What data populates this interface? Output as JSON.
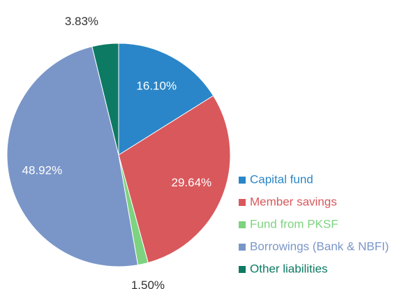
{
  "chart_data": {
    "type": "pie",
    "categories": [
      "Capital fund",
      "Member savings",
      "Fund from PKSF",
      "Borrowings (Bank & NBFI)",
      "Other liabilities"
    ],
    "values": [
      16.1,
      29.64,
      1.5,
      48.92,
      3.83
    ],
    "value_labels": [
      "16.10%",
      "29.64%",
      "1.50%",
      "48.92%",
      "3.83%"
    ],
    "colors": [
      "#2a86c8",
      "#d9585c",
      "#7dd37f",
      "#7a96c8",
      "#0d7a63"
    ],
    "legend": "right"
  }
}
